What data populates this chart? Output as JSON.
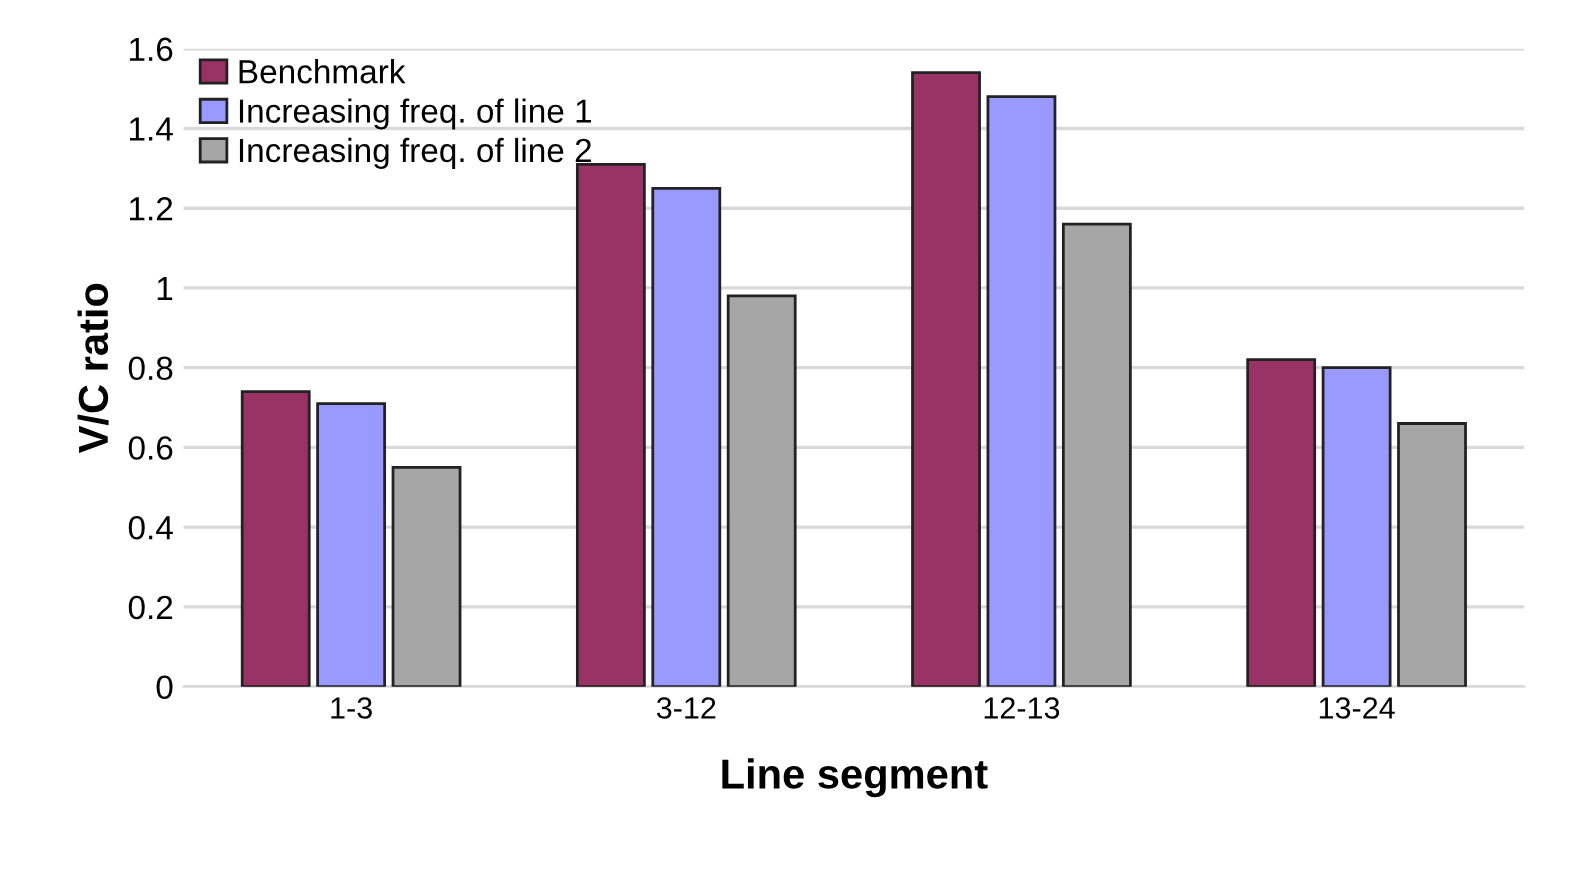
{
  "chart_data": {
    "type": "bar",
    "xlabel": "Line segment",
    "ylabel": "V/C ratio",
    "categories": [
      "1-3",
      "3-12",
      "12-13",
      "13-24"
    ],
    "series": [
      {
        "name": "Benchmark",
        "color": "#993366",
        "values": [
          0.74,
          1.31,
          1.54,
          0.82
        ]
      },
      {
        "name": "Increasing freq. of line 1",
        "color": "#9999ff",
        "values": [
          0.71,
          1.25,
          1.48,
          0.8
        ]
      },
      {
        "name": "Increasing freq. of line 2",
        "color": "#a6a6a6",
        "values": [
          0.55,
          0.98,
          1.16,
          0.66
        ]
      }
    ],
    "ylim": [
      0,
      1.6
    ],
    "yticks": [
      0,
      {
        "value": 0.2,
        "label": "0.2"
      },
      {
        "value": 0.4,
        "label": "0.4"
      },
      {
        "value": 0.6,
        "label": "0.6"
      },
      {
        "value": 0.8,
        "label": "0.8"
      },
      1,
      {
        "value": 1.2,
        "label": "1.2"
      },
      {
        "value": 1.4,
        "label": "1.4"
      },
      {
        "value": 1.6,
        "label": "1.6"
      }
    ],
    "grid": "y",
    "legend": "top left"
  }
}
